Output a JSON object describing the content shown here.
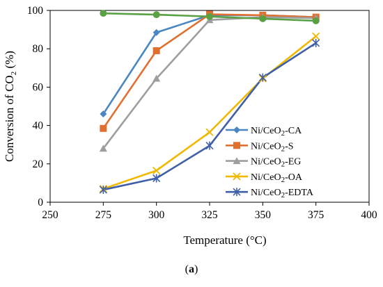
{
  "caption": {
    "open": "(",
    "letter": "a",
    "close": ")"
  },
  "chart_data": {
    "type": "line",
    "ylabel": {
      "main": "Conversion of CO",
      "sub": "2",
      "tail": " (%)"
    },
    "xlabel": "Temperature (°C)",
    "xlim": [
      250,
      400
    ],
    "ylim": [
      0,
      100
    ],
    "xticks": [
      250,
      275,
      300,
      325,
      350,
      375,
      400
    ],
    "yticks": [
      0,
      20,
      40,
      60,
      80,
      100
    ],
    "grid": false,
    "legend_position": "lower-right",
    "x": [
      275,
      300,
      325,
      350,
      375
    ],
    "equilibrium": {
      "color": "#5aa145",
      "marker": "circle",
      "values": [
        98.5,
        97.8,
        96.8,
        95.7,
        94.6
      ]
    },
    "series": [
      {
        "name": {
          "pre": "Ni/CeO",
          "sub": "2",
          "post": "-CA"
        },
        "color": "#4a86c2",
        "marker": "diamond",
        "values": [
          46,
          88.5,
          97.5,
          97.5,
          96.5
        ]
      },
      {
        "name": {
          "pre": "Ni/CeO",
          "sub": "2",
          "post": "-S"
        },
        "color": "#e07030",
        "marker": "square",
        "values": [
          38.5,
          79,
          98,
          97.5,
          96.5
        ]
      },
      {
        "name": {
          "pre": "Ni/CeO",
          "sub": "2",
          "post": "-EG"
        },
        "color": "#9e9e9e",
        "marker": "triangle",
        "values": [
          28,
          64.5,
          95,
          96.5,
          96
        ]
      },
      {
        "name": {
          "pre": "Ni/CeO",
          "sub": "2",
          "post": "-OA"
        },
        "color": "#f0b800",
        "marker": "x",
        "values": [
          7,
          16.5,
          36.5,
          64.5,
          86.5
        ]
      },
      {
        "name": {
          "pre": "Ni/CeO",
          "sub": "2",
          "post": "-EDTA"
        },
        "color": "#3f5fa8",
        "marker": "star",
        "values": [
          6.5,
          12.5,
          29.5,
          65,
          83
        ]
      }
    ]
  }
}
